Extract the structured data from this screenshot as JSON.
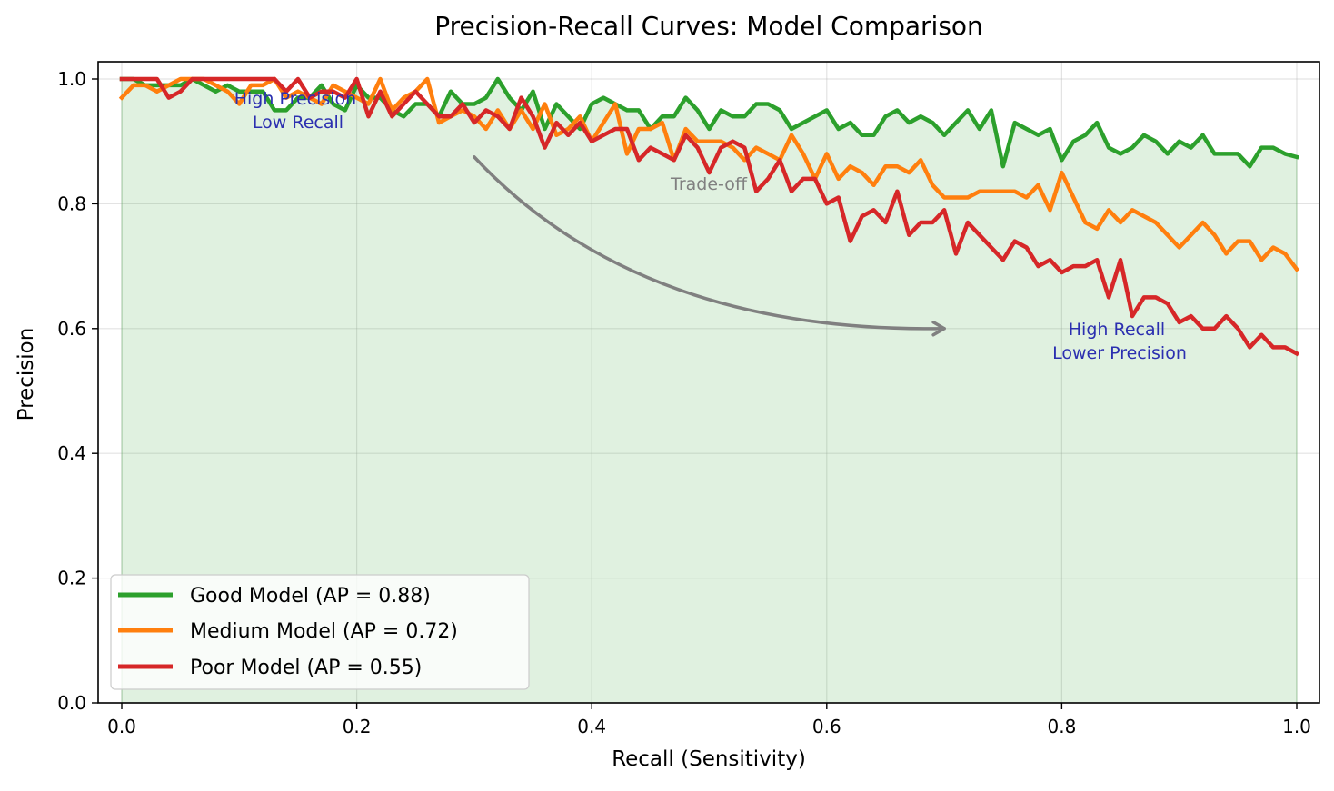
{
  "chart_data": {
    "type": "line",
    "title": "Precision-Recall Curves: Model Comparison",
    "xlabel": "Recall (Sensitivity)",
    "ylabel": "Precision",
    "xlim": [
      -0.02,
      1.02
    ],
    "ylim": [
      0.0,
      1.03
    ],
    "xticks": [
      0.0,
      0.2,
      0.4,
      0.6,
      0.8,
      1.0
    ],
    "xtick_labels": [
      "0.0",
      "0.2",
      "0.4",
      "0.6",
      "0.8",
      "1.0"
    ],
    "yticks": [
      0.0,
      0.2,
      0.4,
      0.6,
      0.8,
      1.0
    ],
    "ytick_labels": [
      "0.0",
      "0.2",
      "0.4",
      "0.6",
      "0.8",
      "1.0"
    ],
    "grid": true,
    "legend_position": "lower-left",
    "fill_under": {
      "series": "Good Model",
      "color": "#2ca02c",
      "opacity": 0.15
    },
    "x_start": 0.0,
    "x_end": 1.0,
    "series": [
      {
        "name": "Good Model (AP = 0.88)",
        "color": "#2ca02c",
        "values": [
          1.0,
          1.0,
          0.99,
          0.99,
          0.99,
          0.99,
          1.0,
          0.99,
          0.98,
          0.99,
          0.98,
          0.98,
          0.98,
          0.95,
          0.95,
          0.97,
          0.97,
          0.99,
          0.96,
          0.95,
          0.99,
          0.97,
          0.97,
          0.95,
          0.94,
          0.96,
          0.96,
          0.94,
          0.98,
          0.96,
          0.96,
          0.97,
          1.0,
          0.97,
          0.95,
          0.98,
          0.92,
          0.96,
          0.94,
          0.92,
          0.96,
          0.97,
          0.96,
          0.95,
          0.95,
          0.92,
          0.94,
          0.94,
          0.97,
          0.95,
          0.92,
          0.95,
          0.94,
          0.94,
          0.96,
          0.96,
          0.95,
          0.92,
          0.93,
          0.94,
          0.95,
          0.92,
          0.93,
          0.91,
          0.91,
          0.94,
          0.95,
          0.93,
          0.94,
          0.93,
          0.91,
          0.93,
          0.95,
          0.92,
          0.95,
          0.86,
          0.93,
          0.92,
          0.91,
          0.92,
          0.87,
          0.9,
          0.91,
          0.93,
          0.89,
          0.88,
          0.89,
          0.91,
          0.9,
          0.88,
          0.9,
          0.89,
          0.91,
          0.88,
          0.88,
          0.88,
          0.86,
          0.89,
          0.89,
          0.88,
          0.875
        ]
      },
      {
        "name": "Medium Model (AP = 0.72)",
        "color": "#ff7f0e",
        "values": [
          0.97,
          0.99,
          0.99,
          0.98,
          0.99,
          1.0,
          1.0,
          1.0,
          0.99,
          0.98,
          0.96,
          0.99,
          0.99,
          1.0,
          0.97,
          0.98,
          0.97,
          0.96,
          0.99,
          0.98,
          0.97,
          0.96,
          1.0,
          0.95,
          0.97,
          0.98,
          1.0,
          0.93,
          0.94,
          0.95,
          0.94,
          0.92,
          0.95,
          0.92,
          0.95,
          0.92,
          0.96,
          0.91,
          0.92,
          0.94,
          0.9,
          0.93,
          0.96,
          0.88,
          0.92,
          0.92,
          0.93,
          0.87,
          0.92,
          0.9,
          0.9,
          0.9,
          0.89,
          0.87,
          0.89,
          0.88,
          0.87,
          0.91,
          0.88,
          0.84,
          0.88,
          0.84,
          0.86,
          0.85,
          0.83,
          0.86,
          0.86,
          0.85,
          0.87,
          0.83,
          0.81,
          0.81,
          0.81,
          0.82,
          0.82,
          0.82,
          0.82,
          0.81,
          0.83,
          0.79,
          0.85,
          0.81,
          0.77,
          0.76,
          0.79,
          0.77,
          0.79,
          0.78,
          0.77,
          0.75,
          0.73,
          0.75,
          0.77,
          0.75,
          0.72,
          0.74,
          0.74,
          0.71,
          0.73,
          0.72,
          0.695
        ]
      },
      {
        "name": "Poor Model (AP = 0.55)",
        "color": "#d62728",
        "values": [
          1.0,
          1.0,
          1.0,
          1.0,
          0.97,
          0.98,
          1.0,
          1.0,
          1.0,
          1.0,
          1.0,
          1.0,
          1.0,
          1.0,
          0.98,
          1.0,
          0.97,
          0.98,
          0.98,
          0.97,
          1.0,
          0.94,
          0.98,
          0.94,
          0.96,
          0.98,
          0.96,
          0.94,
          0.94,
          0.96,
          0.93,
          0.95,
          0.94,
          0.92,
          0.97,
          0.94,
          0.89,
          0.93,
          0.91,
          0.93,
          0.9,
          0.91,
          0.92,
          0.92,
          0.87,
          0.89,
          0.88,
          0.87,
          0.91,
          0.89,
          0.85,
          0.89,
          0.9,
          0.89,
          0.82,
          0.84,
          0.87,
          0.82,
          0.84,
          0.84,
          0.8,
          0.81,
          0.74,
          0.78,
          0.79,
          0.77,
          0.82,
          0.75,
          0.77,
          0.77,
          0.79,
          0.72,
          0.77,
          0.75,
          0.73,
          0.71,
          0.74,
          0.73,
          0.7,
          0.71,
          0.69,
          0.7,
          0.7,
          0.71,
          0.65,
          0.71,
          0.62,
          0.65,
          0.65,
          0.64,
          0.61,
          0.62,
          0.6,
          0.6,
          0.62,
          0.6,
          0.57,
          0.59,
          0.57,
          0.57,
          0.56
        ]
      }
    ],
    "annotations": [
      {
        "text_lines": [
          "High Precision",
          "Low Recall"
        ],
        "x": 0.15,
        "y": 0.97,
        "color": "#2b2fb0"
      },
      {
        "text_lines": [
          "High Recall",
          "Lower Precision"
        ],
        "x": 0.85,
        "y": 0.6,
        "color": "#2b2fb0"
      },
      {
        "text_lines": [
          "Trade-off"
        ],
        "x": 0.5,
        "y": 0.83,
        "color": "#808080"
      }
    ],
    "arrow": {
      "from": [
        0.3,
        0.875
      ],
      "to": [
        0.7,
        0.6
      ],
      "color": "#808080",
      "label": "Trade-off"
    }
  }
}
